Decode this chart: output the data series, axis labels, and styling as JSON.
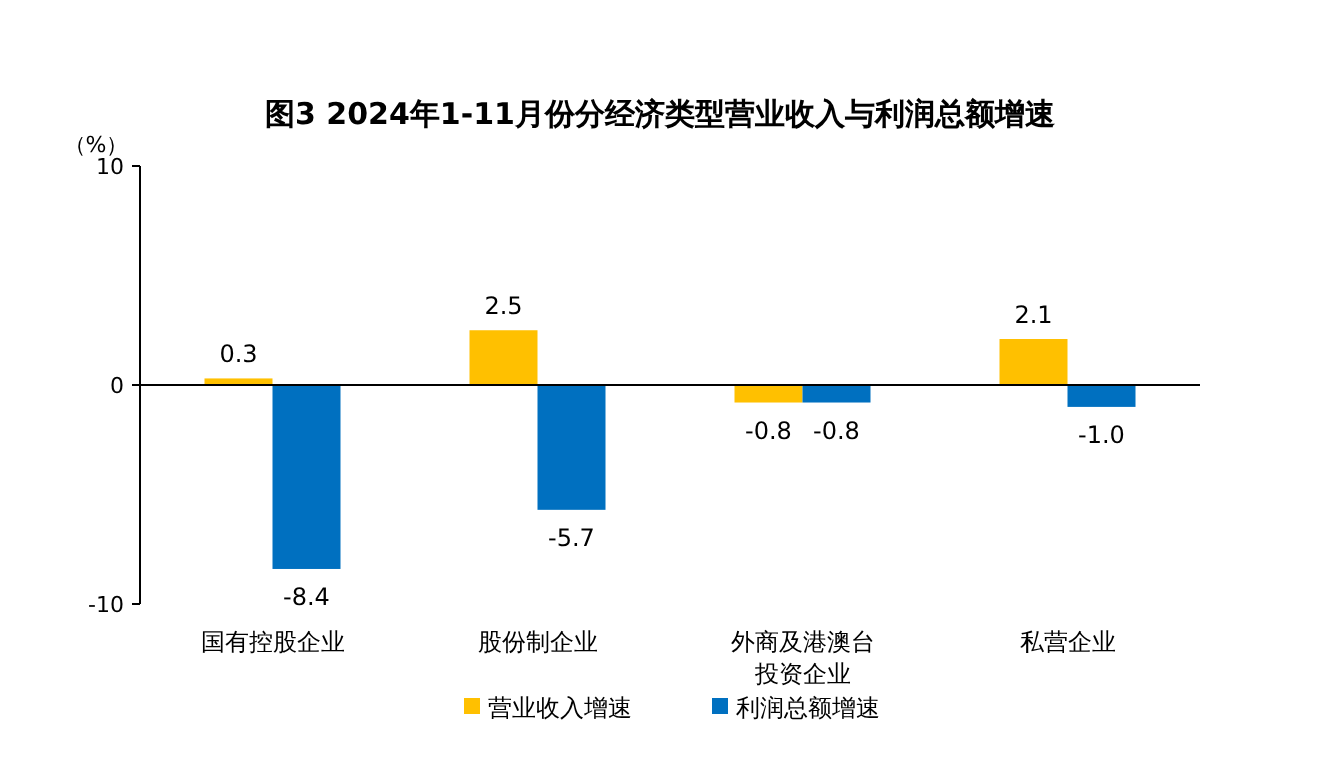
{
  "chart_data": {
    "type": "bar",
    "title": "图3  2024年1-11月份分经济类型营业收入与利润总额增速",
    "ylabel": "（%）",
    "categories": [
      "国有控股企业",
      "股份制企业",
      "外商及港澳台投资企业",
      "私营企业"
    ],
    "series": [
      {
        "name": "营业收入增速",
        "color": "#ffc000",
        "values": [
          0.3,
          2.5,
          -0.8,
          2.1
        ],
        "value_labels": [
          "0.3",
          "2.5",
          "-0.8",
          "2.1"
        ]
      },
      {
        "name": "利润总额增速",
        "color": "#0070c0",
        "values": [
          -8.4,
          -5.7,
          -0.8,
          -1.0
        ],
        "value_labels": [
          "-8.4",
          "-5.7",
          "-0.8",
          "-1.0"
        ]
      }
    ],
    "ylim": [
      -10,
      10
    ],
    "yticks": [
      -10,
      0,
      10
    ],
    "legend": "bottom"
  }
}
